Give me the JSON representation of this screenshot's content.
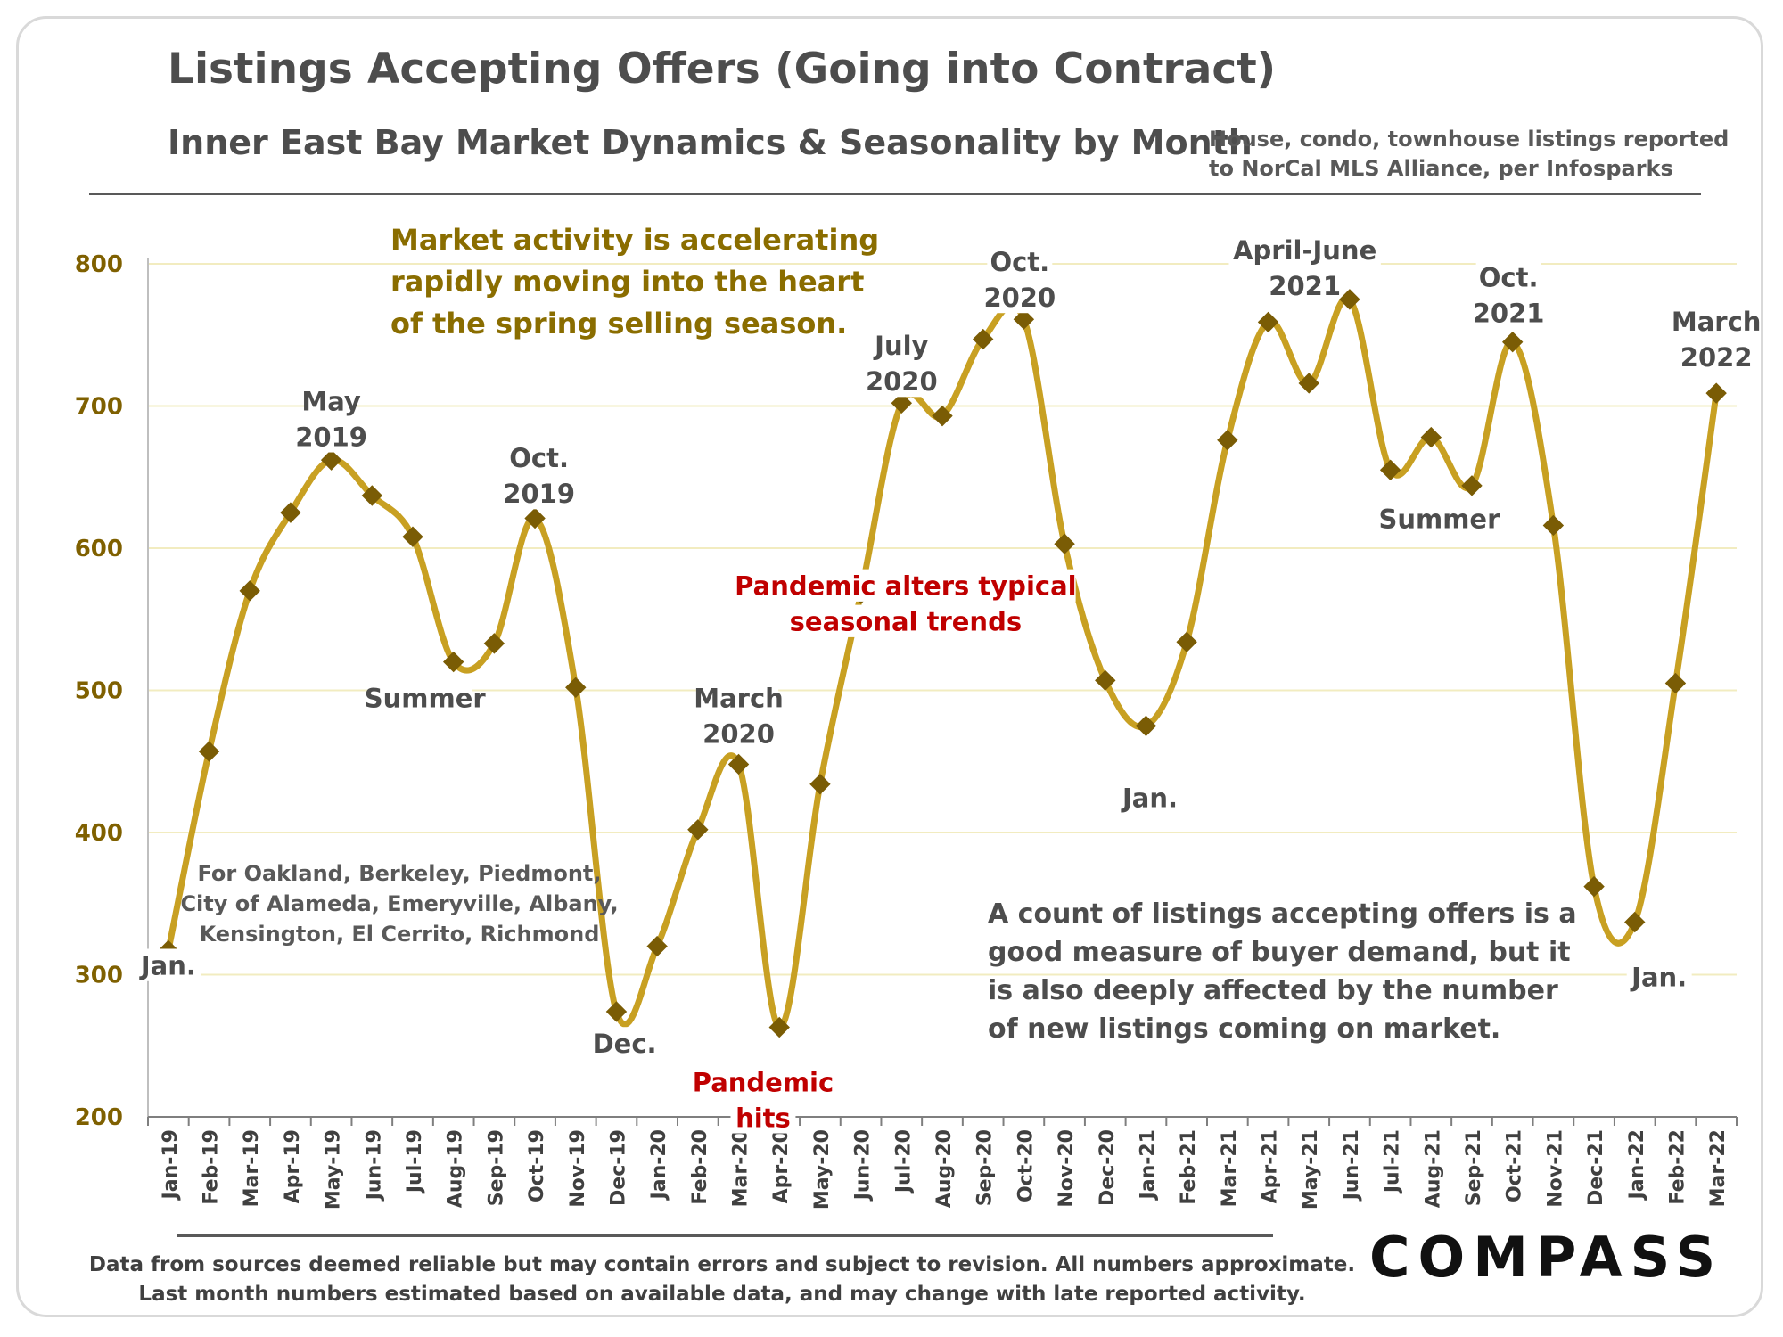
{
  "header": {
    "title": "Listings Accepting Offers (Going into Contract)",
    "subtitle": "Inner East Bay Market Dynamics & Seasonality by Month",
    "source_note": [
      "House, condo, townhouse listings reported",
      "to NorCal MLS Alliance, per Infosparks"
    ]
  },
  "footer": {
    "lines": [
      "Data from sources deemed reliable but may contain errors and subject to revision. All numbers approximate.",
      "Last month numbers estimated based on available data, and may change with late reported activity."
    ],
    "brand": "COMPASS"
  },
  "colors": {
    "line": "#c8a022",
    "marker": "#7a5c05",
    "axis_text": "#7f6000",
    "label": "#4d4d4d",
    "red": "#c00000",
    "gold": "#8a6d00",
    "grid": "#f2ecc0"
  },
  "chart_data": {
    "type": "line",
    "x": [
      "Jan-19",
      "Feb-19",
      "Mar-19",
      "Apr-19",
      "May-19",
      "Jun-19",
      "Jul-19",
      "Aug-19",
      "Sep-19",
      "Oct-19",
      "Nov-19",
      "Dec-19",
      "Jan-20",
      "Feb-20",
      "Mar-20",
      "Apr-20",
      "May-20",
      "Jun-20",
      "Jul-20",
      "Aug-20",
      "Sep-20",
      "Oct-20",
      "Nov-20",
      "Dec-20",
      "Jan-21",
      "Feb-21",
      "Mar-21",
      "Apr-21",
      "May-21",
      "Jun-21",
      "Jul-21",
      "Aug-21",
      "Sep-21",
      "Oct-21",
      "Nov-21",
      "Dec-21",
      "Jan-22",
      "Feb-22",
      "Mar-22"
    ],
    "values": [
      317,
      457,
      570,
      625,
      662,
      637,
      608,
      520,
      533,
      621,
      502,
      274,
      320,
      402,
      448,
      263,
      434,
      568,
      702,
      693,
      747,
      761,
      603,
      507,
      475,
      534,
      676,
      759,
      716,
      775,
      655,
      678,
      644,
      745,
      616,
      362,
      337,
      505,
      709
    ],
    "ylim": [
      200,
      800
    ],
    "yticks": [
      "200",
      "300",
      "400",
      "500",
      "600",
      "700",
      "800"
    ],
    "grid": true,
    "annotations": [
      {
        "text": [
          "Jan."
        ],
        "x": 0,
        "y": 300,
        "style": "label"
      },
      {
        "text": [
          "May",
          "2019"
        ],
        "x": 4,
        "y": 697,
        "style": "label"
      },
      {
        "text": [
          "Summer"
        ],
        "x": 6.3,
        "y": 488,
        "style": "label"
      },
      {
        "text": [
          "Oct.",
          "2019"
        ],
        "x": 9.1,
        "y": 657,
        "style": "label"
      },
      {
        "text": [
          "Dec."
        ],
        "x": 11.2,
        "y": 245,
        "style": "label"
      },
      {
        "text": [
          "March",
          "2020"
        ],
        "x": 14,
        "y": 488,
        "style": "label"
      },
      {
        "text": [
          "Pandemic",
          "hits"
        ],
        "x": 14.6,
        "y": 218,
        "style": "red"
      },
      {
        "text": [
          "July",
          "2020"
        ],
        "x": 18,
        "y": 736,
        "style": "label"
      },
      {
        "text": [
          "Oct.",
          "2020"
        ],
        "x": 20.9,
        "y": 795,
        "style": "label"
      },
      {
        "text": [
          "Pandemic alters typical",
          "seasonal trends"
        ],
        "x": 18.1,
        "y": 567,
        "style": "red"
      },
      {
        "text": [
          "Jan."
        ],
        "x": 24.1,
        "y": 418,
        "style": "label"
      },
      {
        "text": [
          "April-June",
          "2021"
        ],
        "x": 27.9,
        "y": 803,
        "style": "label"
      },
      {
        "text": [
          "Summer"
        ],
        "x": 31.2,
        "y": 614,
        "style": "label"
      },
      {
        "text": [
          "Oct.",
          "2021"
        ],
        "x": 32.9,
        "y": 784,
        "style": "label"
      },
      {
        "text": [
          "March",
          "2022"
        ],
        "x": 38,
        "y": 753,
        "style": "label"
      },
      {
        "text": [
          "Jan."
        ],
        "x": 36.6,
        "y": 292,
        "style": "label"
      }
    ],
    "notes": {
      "gold": [
        "Market activity is accelerating",
        "rapidly moving into the heart",
        "of the spring selling season."
      ],
      "cities": [
        "For Oakland, Berkeley, Piedmont,",
        "City of Alameda, Emeryville, Albany,",
        "Kensington, El Cerrito, Richmond"
      ],
      "count": [
        "A count of listings accepting offers is a",
        "good measure of buyer demand, but it",
        "is also deeply affected by the number",
        "of new listings coming on market."
      ]
    }
  }
}
